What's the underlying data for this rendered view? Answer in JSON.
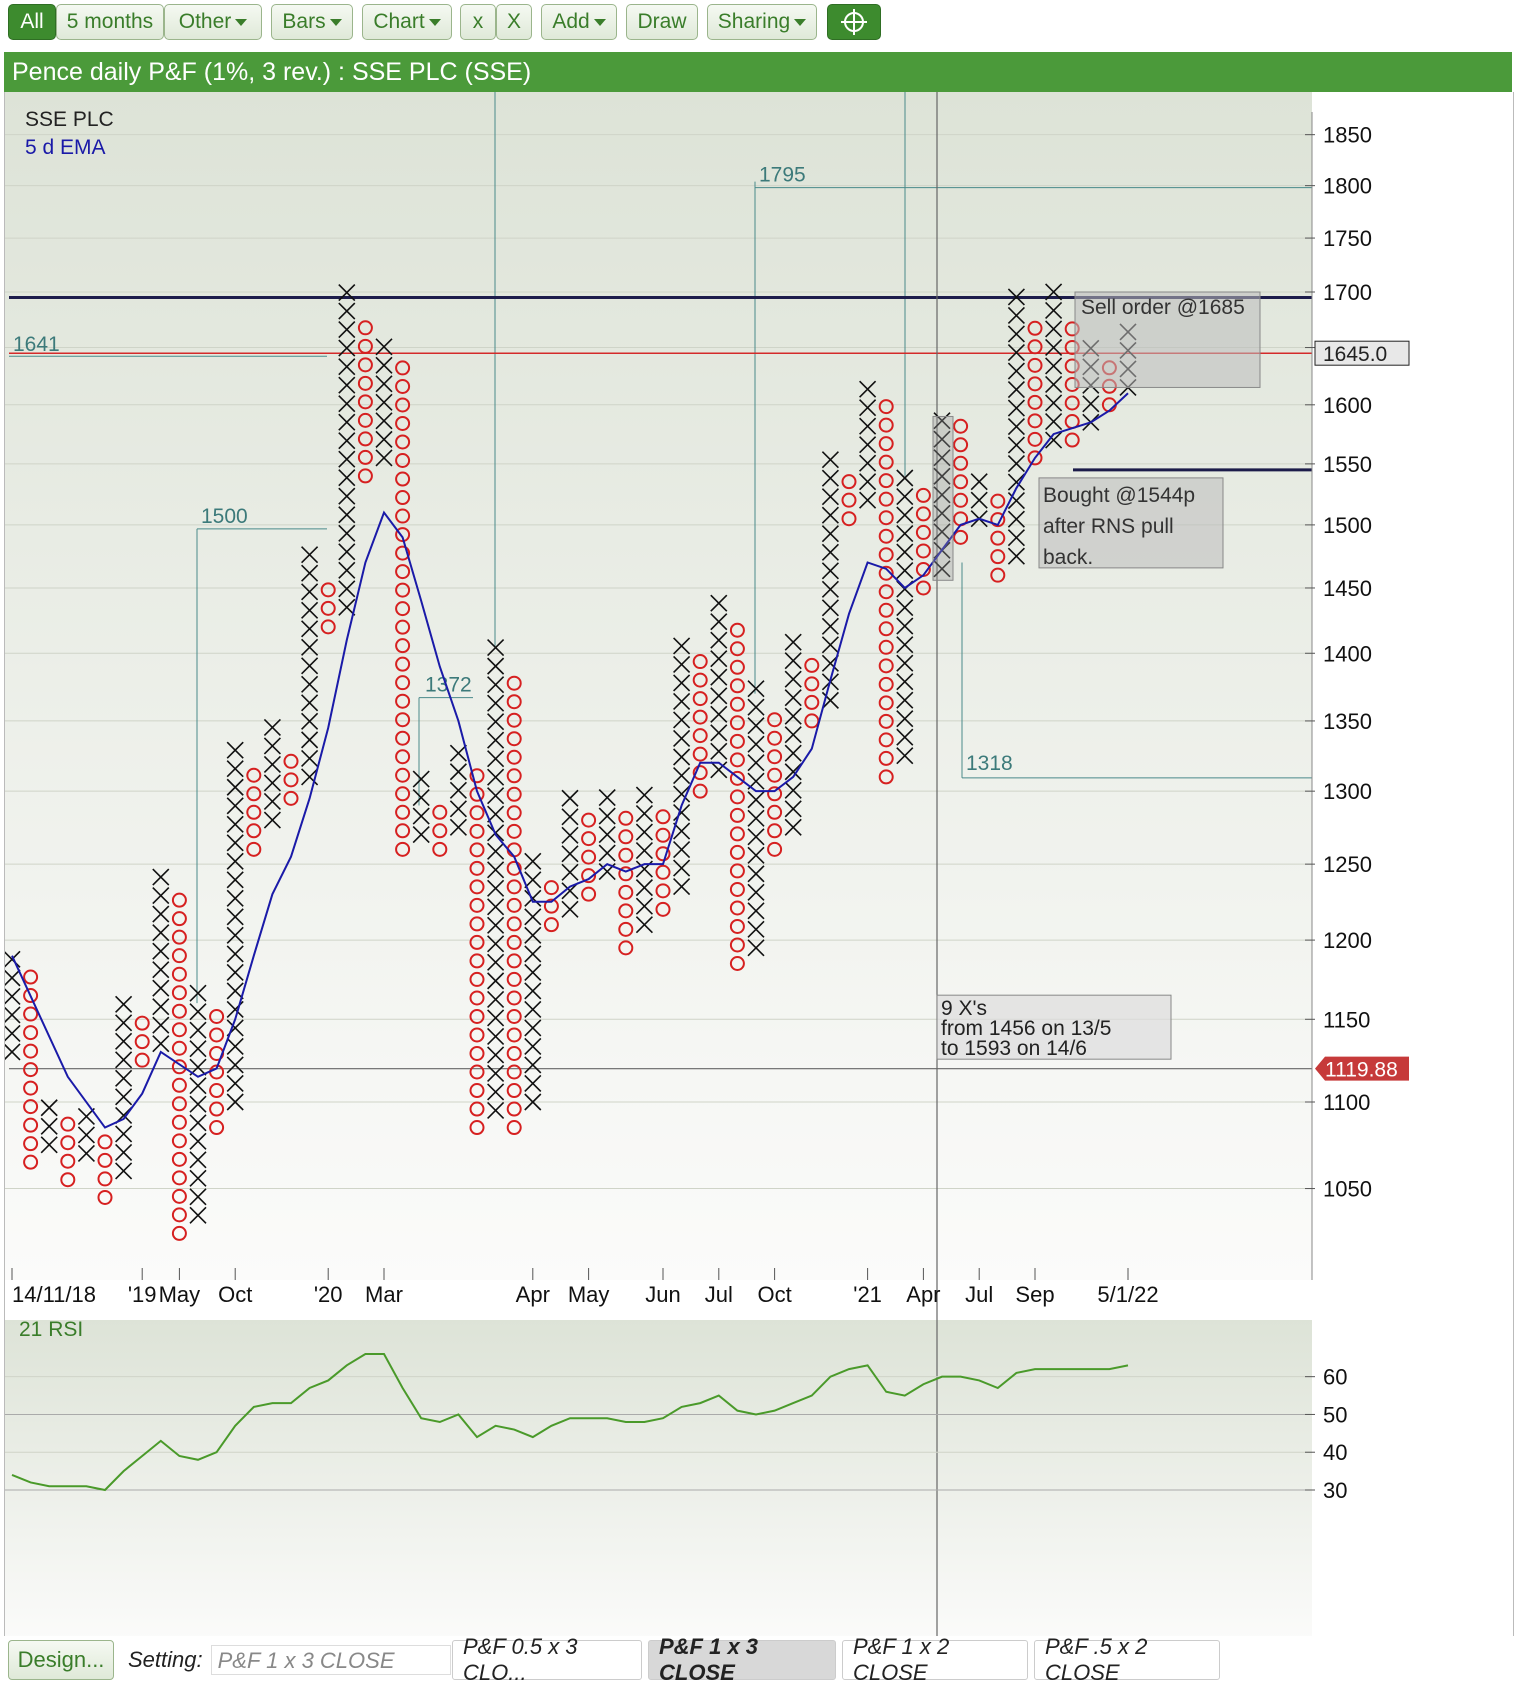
{
  "toolbar": {
    "all": "All",
    "period": "5 months",
    "other": "Other",
    "bars": "Bars",
    "chart": "Chart",
    "x_small": "x",
    "x_big": "X",
    "add": "Add",
    "draw": "Draw",
    "sharing": "Sharing",
    "crosshair_icon": "crosshair-icon"
  },
  "title": "Pence daily P&F (1%, 3 rev.) : SSE PLC (SSE)",
  "legend": {
    "name": "SSE PLC",
    "ema": "5 d EMA",
    "ema_color": "#1a1aa8"
  },
  "chart_data": {
    "type": "point-and-figure",
    "title": "Pence daily P&F (1%, 3 rev.) : SSE PLC (SSE)",
    "scale": "log",
    "y_ticks": [
      1050,
      1100,
      1150,
      1200,
      1250,
      1300,
      1350,
      1400,
      1450,
      1500,
      1550,
      1600,
      1650,
      1700,
      1750,
      1800,
      1850
    ],
    "y_tick_labels": [
      "1050",
      "1100",
      "1150",
      "1200",
      "1250",
      "1300",
      "1350",
      "1400",
      "1450",
      "1500",
      "1550",
      "1600",
      "",
      "1700",
      "1750",
      "1800",
      "1850"
    ],
    "x_tick_labels": [
      "14/11/18",
      "'19",
      "May",
      "Oct",
      "'20",
      "Mar",
      "Apr",
      "May",
      "Jun",
      "Jul",
      "Oct",
      "'21",
      "Apr",
      "Jul",
      "Sep",
      "5/1/22"
    ],
    "x_tick_cols": [
      0,
      7,
      9,
      12,
      17,
      20,
      28,
      31,
      35,
      38,
      41,
      46,
      49,
      52,
      55,
      60
    ],
    "columns": [
      {
        "t": "X",
        "lo": 1130,
        "hi": 1190
      },
      {
        "t": "O",
        "lo": 1065,
        "hi": 1175
      },
      {
        "t": "X",
        "lo": 1075,
        "hi": 1100
      },
      {
        "t": "O",
        "lo": 1055,
        "hi": 1085
      },
      {
        "t": "X",
        "lo": 1070,
        "hi": 1090
      },
      {
        "t": "O",
        "lo": 1045,
        "hi": 1075
      },
      {
        "t": "X",
        "lo": 1060,
        "hi": 1165
      },
      {
        "t": "O",
        "lo": 1125,
        "hi": 1150
      },
      {
        "t": "X",
        "lo": 1135,
        "hi": 1240
      },
      {
        "t": "O",
        "lo": 1025,
        "hi": 1220
      },
      {
        "t": "X",
        "lo": 1035,
        "hi": 1165
      },
      {
        "t": "O",
        "lo": 1085,
        "hi": 1150
      },
      {
        "t": "X",
        "lo": 1100,
        "hi": 1330
      },
      {
        "t": "O",
        "lo": 1260,
        "hi": 1310
      },
      {
        "t": "X",
        "lo": 1280,
        "hi": 1345
      },
      {
        "t": "O",
        "lo": 1295,
        "hi": 1325
      },
      {
        "t": "X",
        "lo": 1310,
        "hi": 1470
      },
      {
        "t": "O",
        "lo": 1420,
        "hi": 1450
      },
      {
        "t": "X",
        "lo": 1435,
        "hi": 1695
      },
      {
        "t": "O",
        "lo": 1540,
        "hi": 1670
      },
      {
        "t": "X",
        "lo": 1555,
        "hi": 1655
      },
      {
        "t": "O",
        "lo": 1260,
        "hi": 1635
      },
      {
        "t": "X",
        "lo": 1270,
        "hi": 1305
      },
      {
        "t": "O",
        "lo": 1260,
        "hi": 1285
      },
      {
        "t": "X",
        "lo": 1275,
        "hi": 1330
      },
      {
        "t": "O",
        "lo": 1085,
        "hi": 1310
      },
      {
        "t": "X",
        "lo": 1095,
        "hi": 1400
      },
      {
        "t": "O",
        "lo": 1085,
        "hi": 1380
      },
      {
        "t": "X",
        "lo": 1100,
        "hi": 1255
      },
      {
        "t": "O",
        "lo": 1210,
        "hi": 1235
      },
      {
        "t": "X",
        "lo": 1220,
        "hi": 1290
      },
      {
        "t": "O",
        "lo": 1230,
        "hi": 1275
      },
      {
        "t": "X",
        "lo": 1245,
        "hi": 1290
      },
      {
        "t": "O",
        "lo": 1195,
        "hi": 1275
      },
      {
        "t": "X",
        "lo": 1210,
        "hi": 1300
      },
      {
        "t": "O",
        "lo": 1220,
        "hi": 1285
      },
      {
        "t": "X",
        "lo": 1235,
        "hi": 1410
      },
      {
        "t": "O",
        "lo": 1300,
        "hi": 1395
      },
      {
        "t": "X",
        "lo": 1315,
        "hi": 1440
      },
      {
        "t": "O",
        "lo": 1185,
        "hi": 1420
      },
      {
        "t": "X",
        "lo": 1195,
        "hi": 1370
      },
      {
        "t": "O",
        "lo": 1260,
        "hi": 1355
      },
      {
        "t": "X",
        "lo": 1275,
        "hi": 1410
      },
      {
        "t": "O",
        "lo": 1350,
        "hi": 1395
      },
      {
        "t": "X",
        "lo": 1365,
        "hi": 1560
      },
      {
        "t": "O",
        "lo": 1505,
        "hi": 1540
      },
      {
        "t": "X",
        "lo": 1520,
        "hi": 1620
      },
      {
        "t": "O",
        "lo": 1310,
        "hi": 1605
      },
      {
        "t": "X",
        "lo": 1325,
        "hi": 1540
      },
      {
        "t": "O",
        "lo": 1450,
        "hi": 1520
      },
      {
        "t": "X",
        "lo": 1465,
        "hi": 1590
      },
      {
        "t": "O",
        "lo": 1490,
        "hi": 1575
      },
      {
        "t": "X",
        "lo": 1505,
        "hi": 1540
      },
      {
        "t": "O",
        "lo": 1460,
        "hi": 1525
      },
      {
        "t": "X",
        "lo": 1475,
        "hi": 1695
      },
      {
        "t": "O",
        "lo": 1555,
        "hi": 1670
      },
      {
        "t": "X",
        "lo": 1570,
        "hi": 1695
      },
      {
        "t": "O",
        "lo": 1570,
        "hi": 1670
      },
      {
        "t": "X",
        "lo": 1585,
        "hi": 1655
      },
      {
        "t": "O",
        "lo": 1600,
        "hi": 1635
      },
      {
        "t": "X",
        "lo": 1615,
        "hi": 1670
      }
    ],
    "ema": [
      [
        0,
        1190
      ],
      [
        3,
        1115
      ],
      [
        5,
        1085
      ],
      [
        6,
        1090
      ],
      [
        7,
        1105
      ],
      [
        8,
        1130
      ],
      [
        10,
        1115
      ],
      [
        11,
        1120
      ],
      [
        12,
        1150
      ],
      [
        13,
        1190
      ],
      [
        14,
        1230
      ],
      [
        15,
        1255
      ],
      [
        16,
        1295
      ],
      [
        17,
        1345
      ],
      [
        18,
        1410
      ],
      [
        19,
        1470
      ],
      [
        20,
        1510
      ],
      [
        21,
        1490
      ],
      [
        22,
        1440
      ],
      [
        23,
        1390
      ],
      [
        24,
        1350
      ],
      [
        25,
        1300
      ],
      [
        26,
        1270
      ],
      [
        27,
        1255
      ],
      [
        28,
        1225
      ],
      [
        29,
        1225
      ],
      [
        30,
        1235
      ],
      [
        31,
        1240
      ],
      [
        32,
        1250
      ],
      [
        33,
        1245
      ],
      [
        34,
        1250
      ],
      [
        35,
        1250
      ],
      [
        36,
        1290
      ],
      [
        37,
        1320
      ],
      [
        38,
        1320
      ],
      [
        39,
        1310
      ],
      [
        40,
        1300
      ],
      [
        41,
        1300
      ],
      [
        42,
        1310
      ],
      [
        43,
        1330
      ],
      [
        44,
        1380
      ],
      [
        45,
        1430
      ],
      [
        46,
        1470
      ],
      [
        47,
        1465
      ],
      [
        48,
        1450
      ],
      [
        49,
        1460
      ],
      [
        50,
        1480
      ],
      [
        51,
        1500
      ],
      [
        52,
        1505
      ],
      [
        53,
        1500
      ],
      [
        54,
        1530
      ],
      [
        55,
        1555
      ],
      [
        56,
        1575
      ],
      [
        57,
        1580
      ],
      [
        58,
        1585
      ],
      [
        59,
        1595
      ],
      [
        60,
        1610
      ]
    ],
    "rsi": {
      "label": "21 RSI",
      "y_ticks": [
        30,
        40,
        50,
        60
      ],
      "values": [
        [
          0,
          34
        ],
        [
          1,
          32
        ],
        [
          2,
          31
        ],
        [
          3,
          31
        ],
        [
          4,
          31
        ],
        [
          5,
          30
        ],
        [
          6,
          35
        ],
        [
          7,
          39
        ],
        [
          8,
          43
        ],
        [
          9,
          39
        ],
        [
          10,
          38
        ],
        [
          11,
          40
        ],
        [
          12,
          47
        ],
        [
          13,
          52
        ],
        [
          14,
          53
        ],
        [
          15,
          53
        ],
        [
          16,
          57
        ],
        [
          17,
          59
        ],
        [
          18,
          63
        ],
        [
          19,
          66
        ],
        [
          20,
          66
        ],
        [
          21,
          57
        ],
        [
          22,
          49
        ],
        [
          23,
          48
        ],
        [
          24,
          50
        ],
        [
          25,
          44
        ],
        [
          26,
          47
        ],
        [
          27,
          46
        ],
        [
          28,
          44
        ],
        [
          29,
          47
        ],
        [
          30,
          49
        ],
        [
          31,
          49
        ],
        [
          32,
          49
        ],
        [
          33,
          48
        ],
        [
          34,
          48
        ],
        [
          35,
          49
        ],
        [
          36,
          52
        ],
        [
          37,
          53
        ],
        [
          38,
          55
        ],
        [
          39,
          51
        ],
        [
          40,
          50
        ],
        [
          41,
          51
        ],
        [
          42,
          53
        ],
        [
          43,
          55
        ],
        [
          44,
          60
        ],
        [
          45,
          62
        ],
        [
          46,
          63
        ],
        [
          47,
          56
        ],
        [
          48,
          55
        ],
        [
          49,
          58
        ],
        [
          50,
          60
        ],
        [
          51,
          60
        ],
        [
          52,
          59
        ],
        [
          53,
          57
        ],
        [
          54,
          61
        ],
        [
          55,
          62
        ],
        [
          56,
          62
        ],
        [
          57,
          62
        ],
        [
          58,
          62
        ],
        [
          59,
          62
        ],
        [
          60,
          63
        ]
      ]
    },
    "annotations": {
      "sell_line": 1695,
      "current_price_line": 1645,
      "bought_line": 1545,
      "crosshair_price": 1119.88,
      "current_price_label": "1645.0",
      "crosshair_label": "1119.88",
      "sell_text": "Sell order @1685",
      "bought_text": [
        "Bought @1544p",
        "after RNS pull",
        "back."
      ],
      "count_text": [
        "9 X's",
        "from 1456 on 13/5",
        "to 1593 on 14/6"
      ],
      "targets": [
        {
          "label": "1641",
          "value": 1645
        },
        {
          "label": "1500",
          "value": 1500
        },
        {
          "label": "1372",
          "value": 1370
        },
        {
          "label": "1795",
          "value": 1800
        },
        {
          "label": "1318",
          "value": 1315
        }
      ]
    }
  },
  "bottom": {
    "design": "Design...",
    "setting_label": "Setting:",
    "setting_value": "P&F 1 x 3 CLOSE",
    "tabs": [
      "P&F 0.5 x 3 CLO...",
      "P&F 1 x 3 CLOSE",
      "P&F 1 x 2 CLOSE",
      "P&F .5 x 2 CLOSE"
    ]
  }
}
